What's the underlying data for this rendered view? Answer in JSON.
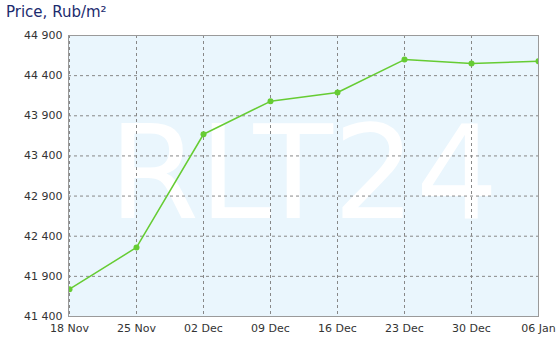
{
  "chart_data": {
    "type": "line",
    "title": "Price, Rub/m²",
    "categories": [
      "18 Nov",
      "25 Nov",
      "02 Dec",
      "09 Dec",
      "16 Dec",
      "23 Dec",
      "30 Dec",
      "06 Jan"
    ],
    "values": [
      41740,
      42260,
      43670,
      44080,
      44190,
      44600,
      44550,
      44580
    ],
    "color": "#66cc33",
    "marker": "circle",
    "ylim": [
      41400,
      44900
    ],
    "yticks": [
      {
        "value": 41400,
        "label": "41 400"
      },
      {
        "value": 41900,
        "label": "41 900"
      },
      {
        "value": 42400,
        "label": "42 400"
      },
      {
        "value": 42900,
        "label": "42 900"
      },
      {
        "value": 43400,
        "label": "43 400"
      },
      {
        "value": 43900,
        "label": "43 900"
      },
      {
        "value": 44400,
        "label": "44 400"
      },
      {
        "value": 44900,
        "label": "44 900"
      }
    ],
    "grid": true,
    "annotations": [
      "RLT24"
    ]
  }
}
